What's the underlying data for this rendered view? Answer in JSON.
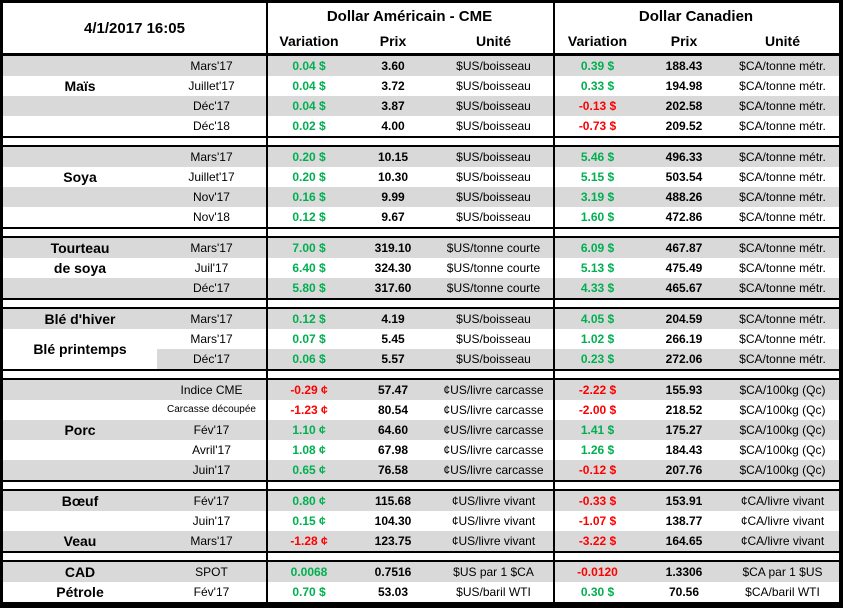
{
  "header": {
    "datetime": "4/1/2017 16:05",
    "usd_group": "Dollar Américain - CME",
    "cad_group": "Dollar Canadien",
    "cols": {
      "variation": "Variation",
      "prix": "Prix",
      "unite": "Unité"
    }
  },
  "colors": {
    "positive": "#00B050",
    "negative": "#FF0000",
    "stripe": "#D9D9D9"
  },
  "sections": [
    {
      "id": "mais",
      "labels": [
        {
          "text": "Maïs",
          "row": 1
        }
      ],
      "rows": [
        {
          "month": "Mars'17",
          "us_var": "0.04 $",
          "us_prix": "3.60",
          "us_unit": "$US/boisseau",
          "ca_var": "0.39 $",
          "ca_prix": "188.43",
          "ca_unit": "$CA/tonne métr."
        },
        {
          "month": "Juillet'17",
          "us_var": "0.04 $",
          "us_prix": "3.72",
          "us_unit": "$US/boisseau",
          "ca_var": "0.33 $",
          "ca_prix": "194.98",
          "ca_unit": "$CA/tonne métr."
        },
        {
          "month": "Déc'17",
          "us_var": "0.04 $",
          "us_prix": "3.87",
          "us_unit": "$US/boisseau",
          "ca_var": "-0.13 $",
          "ca_prix": "202.58",
          "ca_unit": "$CA/tonne métr."
        },
        {
          "month": "Déc'18",
          "us_var": "0.02 $",
          "us_prix": "4.00",
          "us_unit": "$US/boisseau",
          "ca_var": "-0.73 $",
          "ca_prix": "209.52",
          "ca_unit": "$CA/tonne métr."
        }
      ]
    },
    {
      "id": "soya",
      "labels": [
        {
          "text": "Soya",
          "row": 1
        }
      ],
      "rows": [
        {
          "month": "Mars'17",
          "us_var": "0.20 $",
          "us_prix": "10.15",
          "us_unit": "$US/boisseau",
          "ca_var": "5.46 $",
          "ca_prix": "496.33",
          "ca_unit": "$CA/tonne métr."
        },
        {
          "month": "Juillet'17",
          "us_var": "0.20 $",
          "us_prix": "10.30",
          "us_unit": "$US/boisseau",
          "ca_var": "5.15 $",
          "ca_prix": "503.54",
          "ca_unit": "$CA/tonne métr."
        },
        {
          "month": "Nov'17",
          "us_var": "0.16 $",
          "us_prix": "9.99",
          "us_unit": "$US/boisseau",
          "ca_var": "3.19 $",
          "ca_prix": "488.26",
          "ca_unit": "$CA/tonne métr."
        },
        {
          "month": "Nov'18",
          "us_var": "0.12 $",
          "us_prix": "9.67",
          "us_unit": "$US/boisseau",
          "ca_var": "1.60 $",
          "ca_prix": "472.86",
          "ca_unit": "$CA/tonne métr."
        }
      ]
    },
    {
      "id": "tourteau-de-soya",
      "labels": [
        {
          "text": "Tourteau",
          "row": 0
        },
        {
          "text": "de soya",
          "row": 1
        }
      ],
      "rows": [
        {
          "month": "Mars'17",
          "us_var": "7.00 $",
          "us_prix": "319.10",
          "us_unit": "$US/tonne courte",
          "ca_var": "6.09 $",
          "ca_prix": "467.87",
          "ca_unit": "$CA/tonne métr."
        },
        {
          "month": "Juil'17",
          "us_var": "6.40 $",
          "us_prix": "324.30",
          "us_unit": "$US/tonne courte",
          "ca_var": "5.13 $",
          "ca_prix": "475.49",
          "ca_unit": "$CA/tonne métr."
        },
        {
          "month": "Déc'17",
          "us_var": "5.80 $",
          "us_prix": "317.60",
          "us_unit": "$US/tonne courte",
          "ca_var": "4.33 $",
          "ca_prix": "465.67",
          "ca_unit": "$CA/tonne métr."
        }
      ]
    },
    {
      "id": "ble",
      "labels": [
        {
          "text": "Blé d'hiver",
          "row": 0
        },
        {
          "text": "Blé printemps",
          "row": 1,
          "span": 2
        }
      ],
      "rows": [
        {
          "month": "Mars'17",
          "us_var": "0.12 $",
          "us_prix": "4.19",
          "us_unit": "$US/boisseau",
          "ca_var": "4.05 $",
          "ca_prix": "204.59",
          "ca_unit": "$CA/tonne métr."
        },
        {
          "month": "Mars'17",
          "us_var": "0.07 $",
          "us_prix": "5.45",
          "us_unit": "$US/boisseau",
          "ca_var": "1.02 $",
          "ca_prix": "266.19",
          "ca_unit": "$CA/tonne métr."
        },
        {
          "month": "Déc'17",
          "us_var": "0.06 $",
          "us_prix": "5.57",
          "us_unit": "$US/boisseau",
          "ca_var": "0.23 $",
          "ca_prix": "272.06",
          "ca_unit": "$CA/tonne métr."
        }
      ]
    },
    {
      "id": "porc",
      "labels": [
        {
          "text": "Porc",
          "row": 2
        }
      ],
      "rows": [
        {
          "month": "Indice CME",
          "us_var": "-0.29 ¢",
          "us_prix": "57.47",
          "us_unit": "¢US/livre carcasse",
          "ca_var": "-2.22 $",
          "ca_prix": "155.93",
          "ca_unit": "$CA/100kg (Qc)"
        },
        {
          "month": "Carcasse découpée",
          "us_var": "-1.23 ¢",
          "us_prix": "80.54",
          "us_unit": "¢US/livre carcasse",
          "ca_var": "-2.00 $",
          "ca_prix": "218.52",
          "ca_unit": "$CA/100kg (Qc)"
        },
        {
          "month": "Fév'17",
          "us_var": "1.10 ¢",
          "us_prix": "64.60",
          "us_unit": "¢US/livre carcasse",
          "ca_var": "1.41 $",
          "ca_prix": "175.27",
          "ca_unit": "$CA/100kg (Qc)"
        },
        {
          "month": "Avril'17",
          "us_var": "1.08 ¢",
          "us_prix": "67.98",
          "us_unit": "¢US/livre carcasse",
          "ca_var": "1.26 $",
          "ca_prix": "184.43",
          "ca_unit": "$CA/100kg (Qc)"
        },
        {
          "month": "Juin'17",
          "us_var": "0.65 ¢",
          "us_prix": "76.58",
          "us_unit": "¢US/livre carcasse",
          "ca_var": "-0.12 $",
          "ca_prix": "207.76",
          "ca_unit": "$CA/100kg (Qc)"
        }
      ]
    },
    {
      "id": "boeuf-veau",
      "labels": [
        {
          "text": "Bœuf",
          "row": 0
        },
        {
          "text": "Veau",
          "row": 2
        }
      ],
      "rows": [
        {
          "month": "Fév'17",
          "us_var": "0.80 ¢",
          "us_prix": "115.68",
          "us_unit": "¢US/livre vivant",
          "ca_var": "-0.33 $",
          "ca_prix": "153.91",
          "ca_unit": "¢CA/livre vivant"
        },
        {
          "month": "Juin'17",
          "us_var": "0.15 ¢",
          "us_prix": "104.30",
          "us_unit": "¢US/livre vivant",
          "ca_var": "-1.07 $",
          "ca_prix": "138.77",
          "ca_unit": "¢CA/livre vivant"
        },
        {
          "month": "Mars'17",
          "us_var": "-1.28 ¢",
          "us_prix": "123.75",
          "us_unit": "¢US/livre vivant",
          "ca_var": "-3.22 $",
          "ca_prix": "164.65",
          "ca_unit": "¢CA/livre vivant"
        }
      ]
    },
    {
      "id": "cad-petrole",
      "labels": [
        {
          "text": "CAD",
          "row": 0
        },
        {
          "text": "Pétrole",
          "row": 1
        }
      ],
      "rows": [
        {
          "month": "SPOT",
          "us_var": "0.0068",
          "us_prix": "0.7516",
          "us_unit": "$US par 1 $CA",
          "ca_var": "-0.0120",
          "ca_prix": "1.3306",
          "ca_unit": "$CA par 1 $US"
        },
        {
          "month": "Fév'17",
          "us_var": "0.70 $",
          "us_prix": "53.03",
          "us_unit": "$US/baril WTI",
          "ca_var": "0.30 $",
          "ca_prix": "70.56",
          "ca_unit": "$CA/baril WTI"
        }
      ]
    }
  ]
}
